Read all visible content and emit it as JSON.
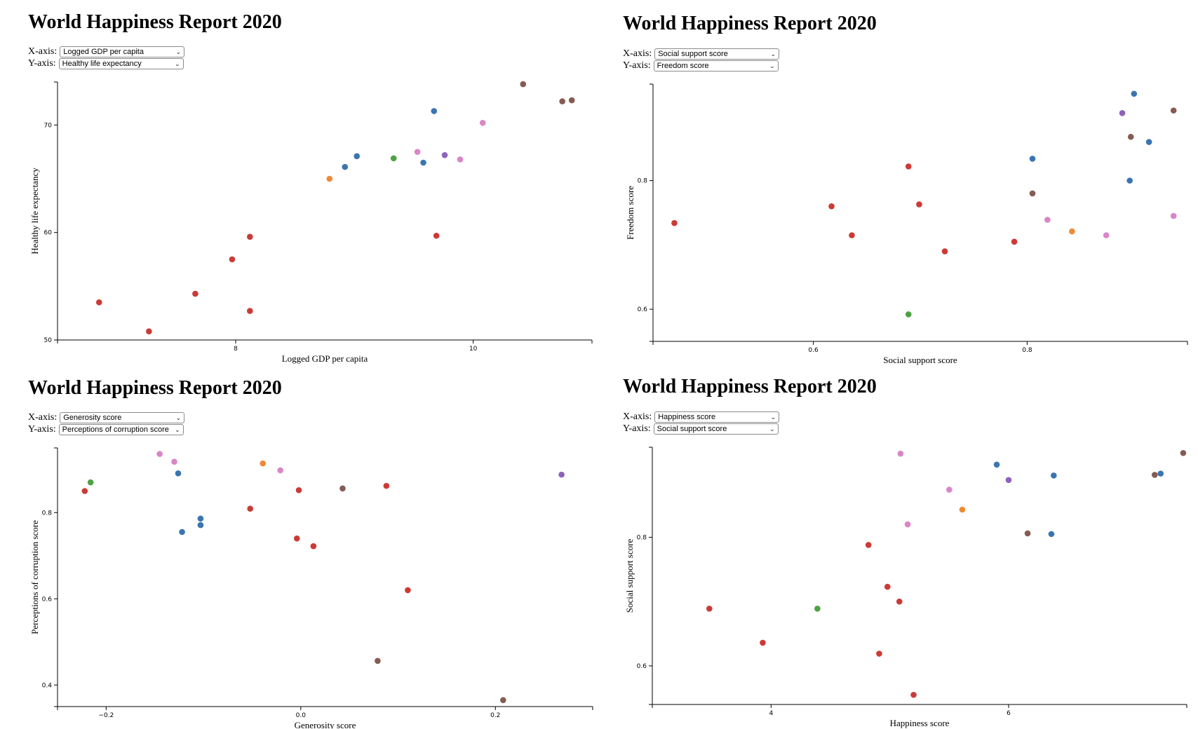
{
  "colors": {
    "blue": "#3a75b0",
    "orange": "#ee8a35",
    "green": "#4ea143",
    "red": "#cc3a36",
    "purple": "#8c63b9",
    "brown": "#855b53",
    "pink": "#d986c6"
  },
  "panels": [
    {
      "title": "World Happiness Report 2020",
      "x_label_text": "X-axis:",
      "y_label_text": "Y-axis:",
      "x_select_value": "Logged GDP per capita",
      "y_select_value": "Healthy life expectancy"
    },
    {
      "title": "World Happiness Report 2020",
      "x_label_text": "X-axis:",
      "y_label_text": "Y-axis:",
      "x_select_value": "Social support score",
      "y_select_value": "Freedom score"
    },
    {
      "title": "World Happiness Report 2020",
      "x_label_text": "X-axis:",
      "y_label_text": "Y-axis:",
      "x_select_value": "Generosity score",
      "y_select_value": "Perceptions of corruption score"
    },
    {
      "title": "World Happiness Report 2020",
      "x_label_text": "X-axis:",
      "y_label_text": "Y-axis:",
      "x_select_value": "Happiness score",
      "y_select_value": "Social support score"
    }
  ],
  "chart_data": [
    {
      "type": "scatter",
      "xlabel": "Logged GDP per capita",
      "ylabel": "Healthy life expectancy",
      "xlim": [
        6.5,
        11.0
      ],
      "ylim": [
        50,
        74
      ],
      "xticks": [
        "8",
        "10"
      ],
      "xtick_values": [
        8,
        10
      ],
      "yticks": [
        "50",
        "60",
        "70"
      ],
      "ytick_values": [
        50,
        60,
        70
      ],
      "points": [
        {
          "x": 6.85,
          "y": 53.5,
          "c": "red"
        },
        {
          "x": 7.27,
          "y": 50.8,
          "c": "red"
        },
        {
          "x": 7.66,
          "y": 54.3,
          "c": "red"
        },
        {
          "x": 7.97,
          "y": 57.5,
          "c": "red"
        },
        {
          "x": 8.12,
          "y": 59.6,
          "c": "red"
        },
        {
          "x": 8.12,
          "y": 52.7,
          "c": "red"
        },
        {
          "x": 8.79,
          "y": 65.0,
          "c": "orange"
        },
        {
          "x": 8.92,
          "y": 66.1,
          "c": "blue"
        },
        {
          "x": 9.02,
          "y": 67.1,
          "c": "blue"
        },
        {
          "x": 9.33,
          "y": 66.9,
          "c": "green"
        },
        {
          "x": 9.53,
          "y": 67.5,
          "c": "pink"
        },
        {
          "x": 9.58,
          "y": 66.5,
          "c": "blue"
        },
        {
          "x": 9.67,
          "y": 71.3,
          "c": "blue"
        },
        {
          "x": 9.69,
          "y": 59.7,
          "c": "red"
        },
        {
          "x": 9.76,
          "y": 67.2,
          "c": "purple"
        },
        {
          "x": 9.89,
          "y": 66.8,
          "c": "pink"
        },
        {
          "x": 10.08,
          "y": 70.2,
          "c": "pink"
        },
        {
          "x": 10.42,
          "y": 73.8,
          "c": "brown"
        },
        {
          "x": 10.75,
          "y": 72.2,
          "c": "brown"
        },
        {
          "x": 10.83,
          "y": 72.3,
          "c": "brown"
        }
      ]
    },
    {
      "type": "scatter",
      "xlabel": "Social support score",
      "ylabel": "Freedom score",
      "xlim": [
        0.45,
        0.95
      ],
      "ylim": [
        0.55,
        0.95
      ],
      "xticks": [
        "0.6",
        "0.8"
      ],
      "xtick_values": [
        0.6,
        0.8
      ],
      "yticks": [
        "0.6",
        "0.8"
      ],
      "ytick_values": [
        0.6,
        0.8
      ],
      "points": [
        {
          "x": 0.47,
          "y": 0.734,
          "c": "red"
        },
        {
          "x": 0.617,
          "y": 0.76,
          "c": "red"
        },
        {
          "x": 0.636,
          "y": 0.715,
          "c": "red"
        },
        {
          "x": 0.689,
          "y": 0.822,
          "c": "red"
        },
        {
          "x": 0.689,
          "y": 0.592,
          "c": "green"
        },
        {
          "x": 0.699,
          "y": 0.763,
          "c": "red"
        },
        {
          "x": 0.723,
          "y": 0.69,
          "c": "red"
        },
        {
          "x": 0.788,
          "y": 0.705,
          "c": "red"
        },
        {
          "x": 0.805,
          "y": 0.834,
          "c": "blue"
        },
        {
          "x": 0.805,
          "y": 0.78,
          "c": "brown"
        },
        {
          "x": 0.819,
          "y": 0.739,
          "c": "pink"
        },
        {
          "x": 0.842,
          "y": 0.721,
          "c": "orange"
        },
        {
          "x": 0.874,
          "y": 0.715,
          "c": "pink"
        },
        {
          "x": 0.889,
          "y": 0.905,
          "c": "purple"
        },
        {
          "x": 0.896,
          "y": 0.8,
          "c": "blue"
        },
        {
          "x": 0.897,
          "y": 0.868,
          "c": "brown"
        },
        {
          "x": 0.9,
          "y": 0.935,
          "c": "blue"
        },
        {
          "x": 0.914,
          "y": 0.86,
          "c": "blue"
        },
        {
          "x": 0.937,
          "y": 0.909,
          "c": "brown"
        },
        {
          "x": 0.937,
          "y": 0.745,
          "c": "pink"
        }
      ]
    },
    {
      "type": "scatter",
      "xlabel": "Generosity score",
      "ylabel": "Perceptions of corruption score",
      "xlim": [
        -0.25,
        0.3
      ],
      "ylim": [
        0.35,
        0.95
      ],
      "xticks": [
        "−0.2",
        "0.0",
        "0.2"
      ],
      "xtick_values": [
        -0.2,
        0.0,
        0.2
      ],
      "yticks": [
        "0.4",
        "0.6",
        "0.8"
      ],
      "ytick_values": [
        0.4,
        0.6,
        0.8
      ],
      "points": [
        {
          "x": -0.222,
          "y": 0.85,
          "c": "red"
        },
        {
          "x": -0.216,
          "y": 0.87,
          "c": "green"
        },
        {
          "x": -0.145,
          "y": 0.936,
          "c": "pink"
        },
        {
          "x": -0.13,
          "y": 0.918,
          "c": "pink"
        },
        {
          "x": -0.126,
          "y": 0.891,
          "c": "blue"
        },
        {
          "x": -0.122,
          "y": 0.755,
          "c": "blue"
        },
        {
          "x": -0.103,
          "y": 0.786,
          "c": "blue"
        },
        {
          "x": -0.103,
          "y": 0.771,
          "c": "blue"
        },
        {
          "x": -0.052,
          "y": 0.809,
          "c": "red"
        },
        {
          "x": -0.039,
          "y": 0.914,
          "c": "orange"
        },
        {
          "x": -0.021,
          "y": 0.898,
          "c": "pink"
        },
        {
          "x": -0.004,
          "y": 0.74,
          "c": "red"
        },
        {
          "x": -0.002,
          "y": 0.852,
          "c": "red"
        },
        {
          "x": 0.013,
          "y": 0.722,
          "c": "red"
        },
        {
          "x": 0.043,
          "y": 0.856,
          "c": "brown"
        },
        {
          "x": 0.079,
          "y": 0.456,
          "c": "brown"
        },
        {
          "x": 0.088,
          "y": 0.862,
          "c": "red"
        },
        {
          "x": 0.11,
          "y": 0.62,
          "c": "red"
        },
        {
          "x": 0.208,
          "y": 0.365,
          "c": "brown"
        },
        {
          "x": 0.268,
          "y": 0.888,
          "c": "purple"
        }
      ]
    },
    {
      "type": "scatter",
      "xlabel": "Happiness score",
      "ylabel": "Social support score",
      "xlim": [
        3.0,
        7.5
      ],
      "ylim": [
        0.54,
        0.94
      ],
      "xticks": [
        "4",
        "6"
      ],
      "xtick_values": [
        4,
        6
      ],
      "yticks": [
        "0.6",
        "0.8"
      ],
      "yticks_values_note": "",
      "ytick_values": [
        0.6,
        0.8
      ],
      "points": [
        {
          "x": 3.48,
          "y": 0.689,
          "c": "red"
        },
        {
          "x": 3.93,
          "y": 0.636,
          "c": "red"
        },
        {
          "x": 4.39,
          "y": 0.689,
          "c": "green"
        },
        {
          "x": 4.82,
          "y": 0.788,
          "c": "red"
        },
        {
          "x": 4.91,
          "y": 0.619,
          "c": "red"
        },
        {
          "x": 4.98,
          "y": 0.723,
          "c": "red"
        },
        {
          "x": 5.08,
          "y": 0.7,
          "c": "red"
        },
        {
          "x": 5.09,
          "y": 0.93,
          "c": "pink"
        },
        {
          "x": 5.15,
          "y": 0.82,
          "c": "pink"
        },
        {
          "x": 5.2,
          "y": 0.555,
          "c": "red"
        },
        {
          "x": 5.5,
          "y": 0.874,
          "c": "pink"
        },
        {
          "x": 5.61,
          "y": 0.843,
          "c": "orange"
        },
        {
          "x": 5.9,
          "y": 0.913,
          "c": "blue"
        },
        {
          "x": 6.0,
          "y": 0.889,
          "c": "purple"
        },
        {
          "x": 6.16,
          "y": 0.806,
          "c": "brown"
        },
        {
          "x": 6.36,
          "y": 0.805,
          "c": "blue"
        },
        {
          "x": 6.38,
          "y": 0.896,
          "c": "blue"
        },
        {
          "x": 7.23,
          "y": 0.897,
          "c": "brown"
        },
        {
          "x": 7.28,
          "y": 0.899,
          "c": "blue"
        },
        {
          "x": 7.47,
          "y": 0.931,
          "c": "brown"
        }
      ]
    }
  ]
}
